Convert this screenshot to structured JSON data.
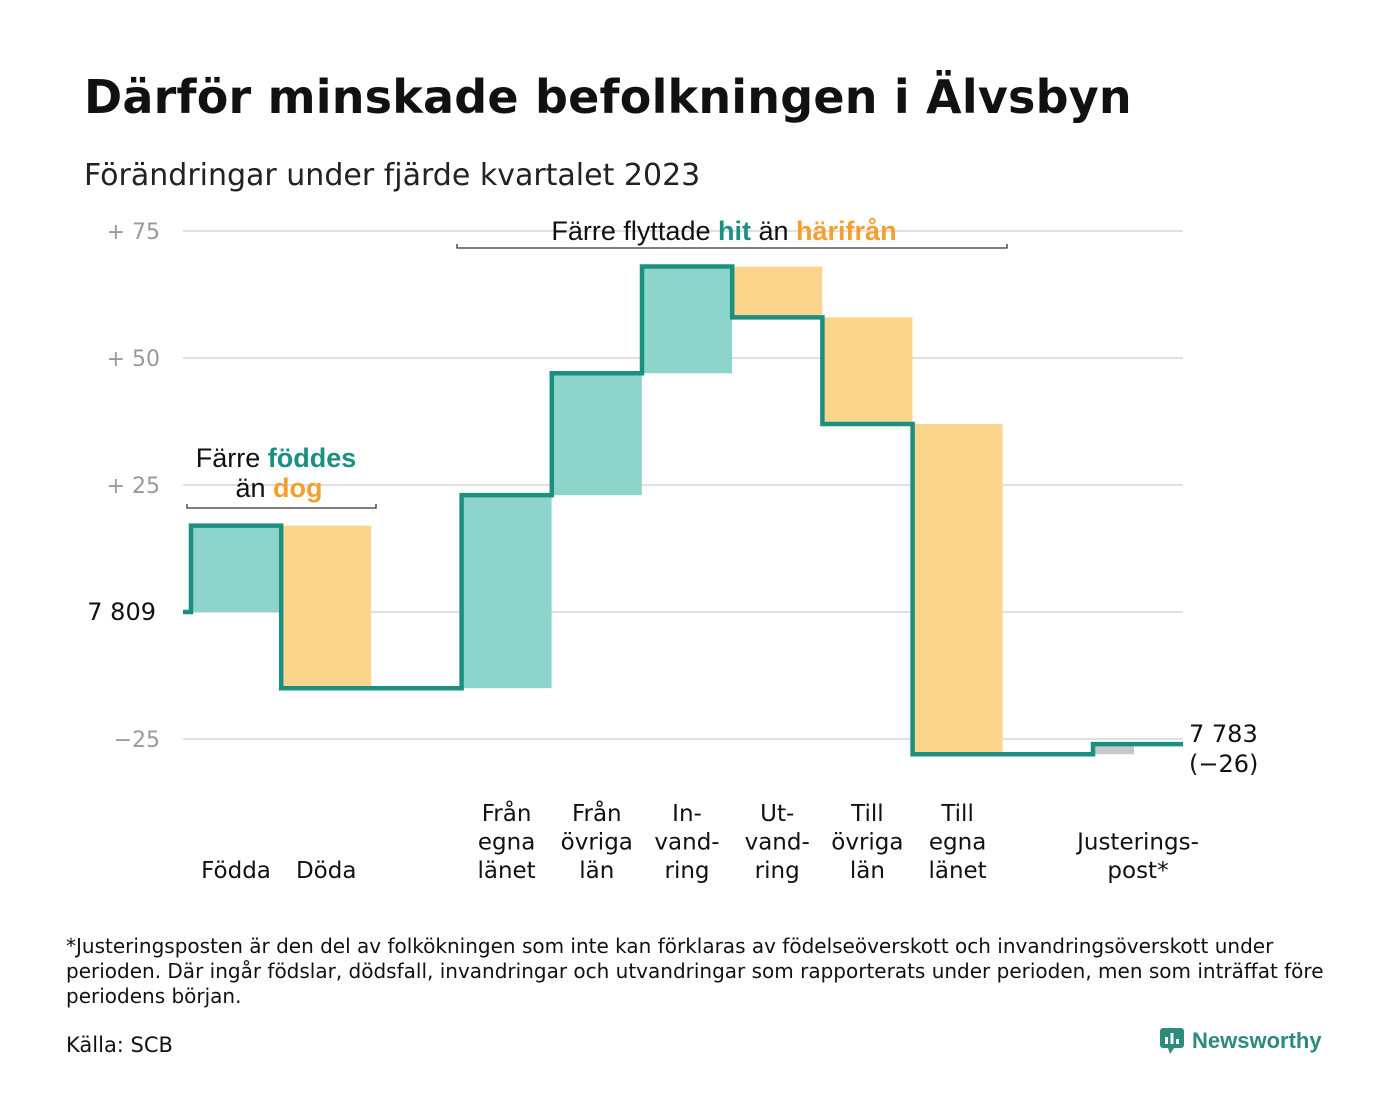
{
  "title": "Därför minskade befolkningen i Älvsbyn",
  "subtitle": "Förändringar under fjärde kvartalet 2023",
  "footnote": "*Justeringsposten är den del av folkökningen som inte kan förklaras av födelseöverskott och invandringsöverskott under perioden. Där ingår födslar, dödsfall, invandringar och utvandringar som rapporterats under perioden, men som inträffat före periodens början.",
  "source": "Källa: SCB",
  "brand": "Newsworthy",
  "colors": {
    "positive": "#8dd5cb",
    "negative": "#fbd58c",
    "line": "#1b8f80",
    "adjustment": "#c8c8c8",
    "hit": "#1b8f80",
    "harifran": "#f3a02e",
    "grid": "#e0e0e4"
  },
  "chart_data": {
    "type": "waterfall",
    "start_label": "7 809",
    "end_label": "7 783",
    "end_change_label": "(−26)",
    "y_ticks": [
      {
        "value": 75,
        "label": "+ 75"
      },
      {
        "value": 50,
        "label": "+ 50"
      },
      {
        "value": 25,
        "label": "+ 25"
      },
      {
        "value": -25,
        "label": "−25"
      }
    ],
    "ylim": [
      -30,
      80
    ],
    "steps": [
      {
        "label": "Födda",
        "label_lines": [
          "Födda"
        ],
        "change": 17,
        "kind": "positive",
        "slot": 0
      },
      {
        "label": "Döda",
        "label_lines": [
          "Döda"
        ],
        "change": -32,
        "kind": "negative",
        "slot": 1
      },
      {
        "label": "Från egna länet",
        "label_lines": [
          "Från",
          "egna",
          "länet"
        ],
        "change": 38,
        "kind": "positive",
        "slot": 3
      },
      {
        "label": "Från övriga län",
        "label_lines": [
          "Från",
          "övriga",
          "län"
        ],
        "change": 24,
        "kind": "positive",
        "slot": 4
      },
      {
        "label": "In-vand-ring",
        "label_lines": [
          "In-",
          "vand-",
          "ring"
        ],
        "change": 21,
        "kind": "positive",
        "slot": 5
      },
      {
        "label": "Ut-vand-ring",
        "label_lines": [
          "Ut-",
          "vand-",
          "ring"
        ],
        "change": -10,
        "kind": "negative",
        "slot": 6
      },
      {
        "label": "Till övriga län",
        "label_lines": [
          "Till",
          "övriga",
          "län"
        ],
        "change": -21,
        "kind": "negative",
        "slot": 7
      },
      {
        "label": "Till egna länet",
        "label_lines": [
          "Till",
          "egna",
          "länet"
        ],
        "change": -65,
        "kind": "negative",
        "slot": 8
      },
      {
        "label": "Justerings-post*",
        "label_lines": [
          "Justerings-",
          "post*"
        ],
        "change": 2,
        "kind": "adjustment",
        "slot": 10
      }
    ],
    "annotations": [
      {
        "name": "births-vs-deaths",
        "parts": [
          {
            "text": "Färre ",
            "color": "default"
          },
          {
            "text": "föddes",
            "color": "hit"
          }
        ],
        "parts2": [
          {
            "text": "än ",
            "color": "default"
          },
          {
            "text": "dog",
            "color": "harifran"
          }
        ]
      },
      {
        "name": "moves-in-vs-out",
        "parts": [
          {
            "text": "Färre flyttade ",
            "color": "default"
          },
          {
            "text": "hit",
            "color": "hit"
          },
          {
            "text": " än ",
            "color": "default"
          },
          {
            "text": "härifrån",
            "color": "harifran"
          }
        ]
      }
    ]
  }
}
